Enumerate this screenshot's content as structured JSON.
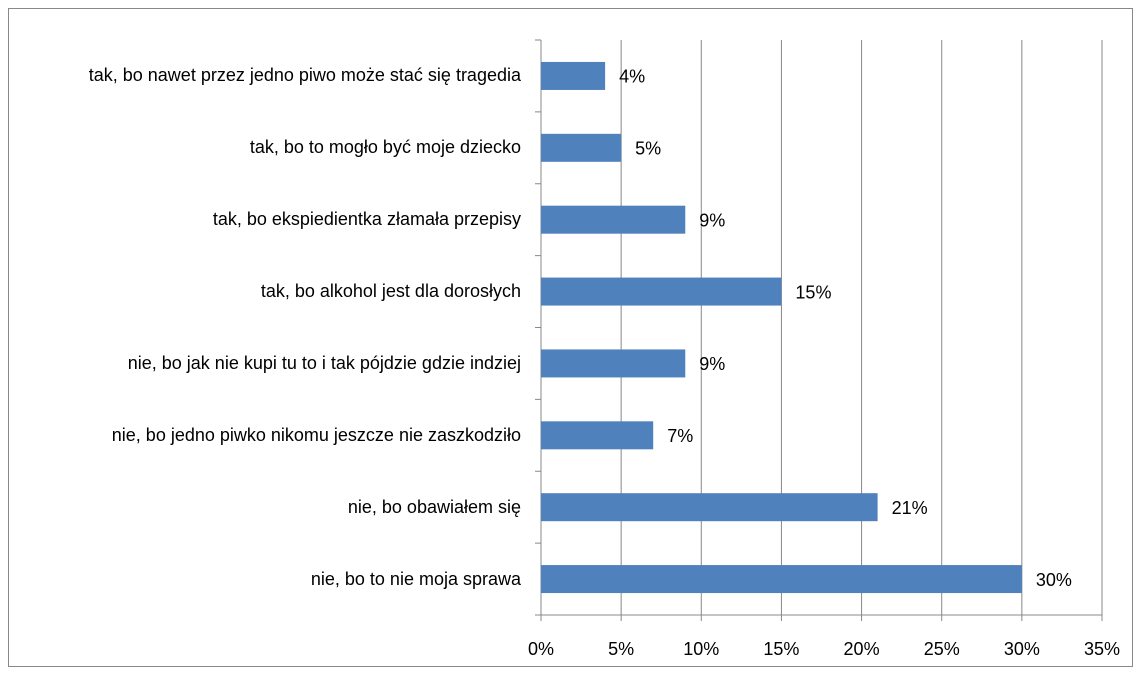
{
  "chart_data": {
    "type": "bar",
    "orientation": "horizontal",
    "categories": [
      "tak, bo nawet przez jedno piwo może stać się tragedia",
      "tak, bo to mogło być moje dziecko",
      "tak, bo ekspiedientka złamała przepisy",
      "tak, bo alkohol jest dla dorosłych",
      "nie, bo jak nie kupi tu to i tak pójdzie gdzie indziej",
      "nie, bo jedno piwko nikomu jeszcze nie zaszkodziło",
      "nie, bo obawiałem się",
      "nie, bo to nie moja sprawa"
    ],
    "values": [
      4,
      5,
      9,
      15,
      9,
      7,
      21,
      30
    ],
    "value_labels": [
      "4%",
      "5%",
      "9%",
      "15%",
      "9%",
      "7%",
      "21%",
      "30%"
    ],
    "color": "#4f81bd",
    "xlim": [
      0,
      35
    ],
    "xticks": [
      {
        "value": 0,
        "label": "0%"
      },
      {
        "value": 5,
        "label": "5%"
      },
      {
        "value": 10,
        "label": "10%"
      },
      {
        "value": 15,
        "label": "15%"
      },
      {
        "value": 20,
        "label": "20%"
      },
      {
        "value": 25,
        "label": "25%"
      },
      {
        "value": 30,
        "label": "30%"
      },
      {
        "value": 35,
        "label": "35%"
      }
    ],
    "grid": true
  }
}
